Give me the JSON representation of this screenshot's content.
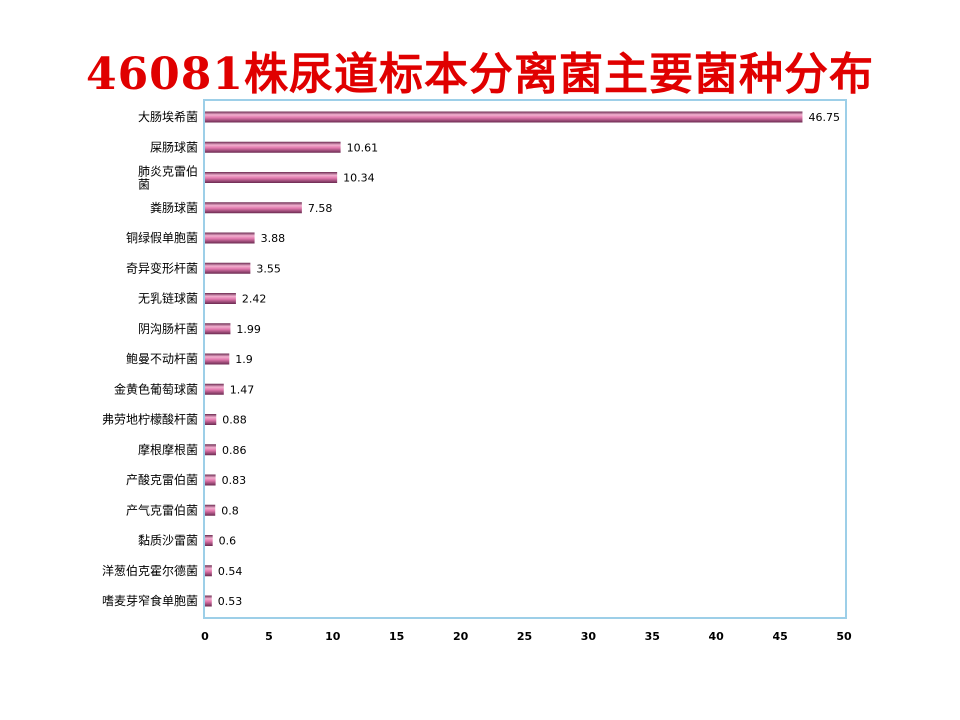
{
  "title": "46081株尿道标本分离菌主要菌种分布",
  "chart_data": {
    "type": "bar",
    "orientation": "horizontal",
    "title": "46081株尿道标本分离菌主要菌种分布",
    "categories": [
      "大肠埃希菌",
      "屎肠球菌",
      "肺炎克雷伯菌",
      "粪肠球菌",
      "铜绿假单胞菌",
      "奇异变形杆菌",
      "无乳链球菌",
      "阴沟肠杆菌",
      "鲍曼不动杆菌",
      "金黄色葡萄球菌",
      "弗劳地柠檬酸杆菌",
      "摩根摩根菌",
      "产酸克雷伯菌",
      "产气克雷伯菌",
      "黏质沙雷菌",
      "洋葱伯克霍尔德菌",
      "嗜麦芽窄食单胞菌"
    ],
    "values": [
      46.75,
      10.61,
      10.34,
      7.58,
      3.88,
      3.55,
      2.42,
      1.99,
      1.9,
      1.47,
      0.88,
      0.86,
      0.83,
      0.8,
      0.6,
      0.54,
      0.53
    ],
    "value_labels": [
      "46.75",
      "10.61",
      "10.34",
      "7.58",
      "3.88",
      "3.55",
      "2.42",
      "1.99",
      "1.9",
      "1.47",
      "0.88",
      "0.86",
      "0.83",
      "0.8",
      "0.6",
      "0.54",
      "0.53"
    ],
    "xlim": [
      0,
      50
    ],
    "xticks": [
      "0",
      "5",
      "10",
      "15",
      "20",
      "25",
      "30",
      "35",
      "40",
      "45",
      "50"
    ],
    "grid": false,
    "legend": "none",
    "colors": {
      "bar": "#c06090",
      "bar_light": "#f2b0d0",
      "bar_dark": "#6a2a50",
      "frame": "#9dcfe8",
      "title": "#e00000"
    }
  }
}
